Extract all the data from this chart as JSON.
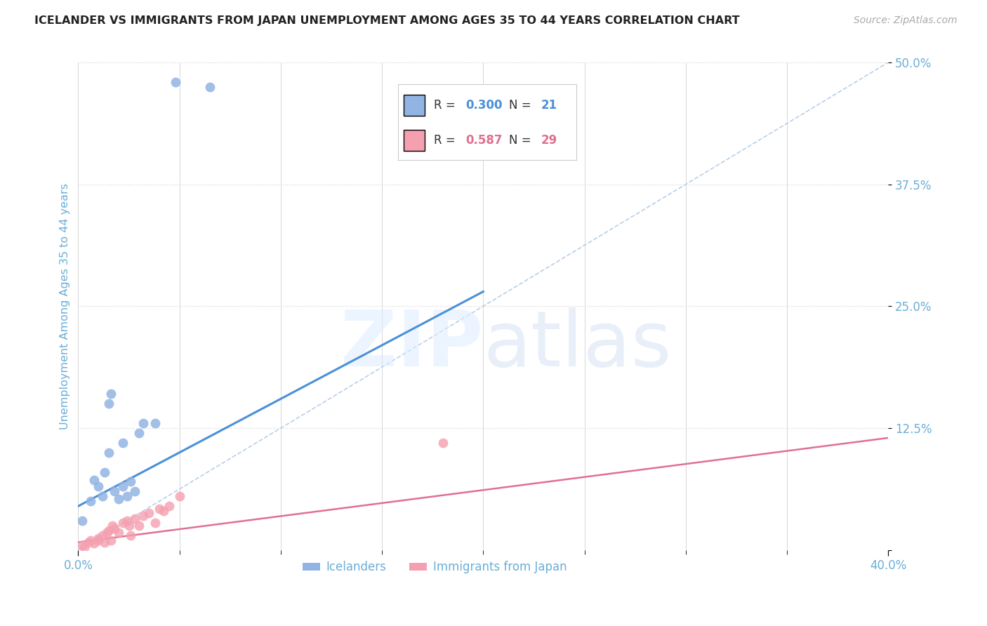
{
  "title": "ICELANDER VS IMMIGRANTS FROM JAPAN UNEMPLOYMENT AMONG AGES 35 TO 44 YEARS CORRELATION CHART",
  "source": "Source: ZipAtlas.com",
  "ylabel": "Unemployment Among Ages 35 to 44 years",
  "xlim": [
    0.0,
    0.4
  ],
  "ylim": [
    0.0,
    0.5
  ],
  "yticks": [
    0.0,
    0.125,
    0.25,
    0.375,
    0.5
  ],
  "ytick_labels": [
    "",
    "12.5%",
    "25.0%",
    "37.5%",
    "50.0%"
  ],
  "color_blue": "#92b4e3",
  "color_pink": "#f4a0b0",
  "color_blue_line": "#4a90d9",
  "color_pink_line": "#e07090",
  "color_diag": "#b8cfe8",
  "color_title": "#222222",
  "color_source": "#aaaaaa",
  "color_axis_labels": "#6baed6",
  "color_grid": "#d0d0d0",
  "background_color": "#ffffff",
  "icelanders_x": [
    0.006,
    0.01,
    0.012,
    0.013,
    0.015,
    0.016,
    0.018,
    0.02,
    0.022,
    0.024,
    0.026,
    0.028,
    0.03,
    0.032,
    0.038,
    0.015,
    0.022,
    0.048,
    0.065,
    0.002,
    0.008
  ],
  "icelanders_y": [
    0.05,
    0.065,
    0.055,
    0.08,
    0.15,
    0.16,
    0.06,
    0.052,
    0.065,
    0.055,
    0.07,
    0.06,
    0.12,
    0.13,
    0.13,
    0.1,
    0.11,
    0.48,
    0.475,
    0.03,
    0.072
  ],
  "japan_x": [
    0.002,
    0.003,
    0.005,
    0.006,
    0.008,
    0.01,
    0.012,
    0.013,
    0.014,
    0.015,
    0.016,
    0.017,
    0.018,
    0.02,
    0.022,
    0.024,
    0.025,
    0.026,
    0.028,
    0.03,
    0.032,
    0.035,
    0.038,
    0.04,
    0.042,
    0.045,
    0.05,
    0.18,
    0.01
  ],
  "japan_y": [
    0.005,
    0.003,
    0.008,
    0.01,
    0.007,
    0.012,
    0.015,
    0.008,
    0.018,
    0.02,
    0.01,
    0.025,
    0.022,
    0.018,
    0.028,
    0.03,
    0.025,
    0.015,
    0.032,
    0.025,
    0.035,
    0.038,
    0.028,
    0.042,
    0.04,
    0.045,
    0.055,
    0.11,
    0.01
  ],
  "blue_line_x": [
    0.0,
    0.2
  ],
  "blue_line_y": [
    0.045,
    0.265
  ],
  "pink_line_x": [
    0.0,
    0.4
  ],
  "pink_line_y": [
    0.008,
    0.115
  ],
  "diag_line_x": [
    0.0,
    0.4
  ],
  "diag_line_y": [
    0.0,
    0.5
  ]
}
